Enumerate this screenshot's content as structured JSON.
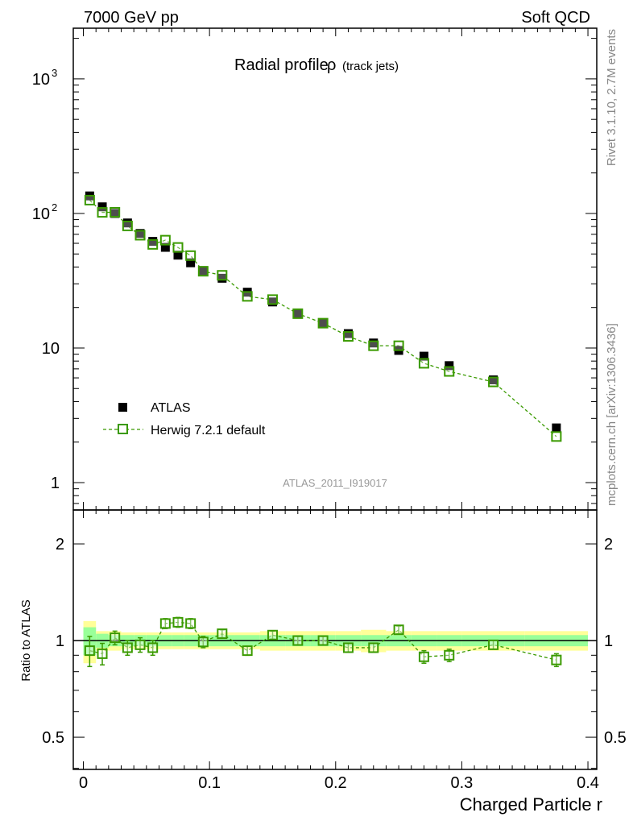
{
  "header": {
    "left": "7000 GeV pp",
    "right": "Soft QCD"
  },
  "side": {
    "rivet": "Rivet 3.1.10,  2.7M events",
    "mcplots": "mcplots.cern.ch [arXiv:1306.3436]"
  },
  "chart_data": {
    "type": "scatter",
    "title": "Radial profile",
    "title_symbol": "ρ",
    "title_suffix": "(track jets)",
    "analysis": "ATLAS_2011_I919017",
    "xlabel": "Charged Particle r",
    "ylabel_ratio": "Ratio to ATLAS",
    "xlim": [
      -0.008,
      0.407
    ],
    "ylim": [
      0.626,
      2380
    ],
    "yscale": "log",
    "ratio_ylim": [
      0.397,
      2.55
    ],
    "x_ticks": [
      "0",
      "0.1",
      "0.2",
      "0.3",
      "0.4"
    ],
    "x_tick_values": [
      0,
      0.1,
      0.2,
      0.3,
      0.4
    ],
    "y_ticks": [
      {
        "v": 1000,
        "label": "10",
        "sup": "3"
      },
      {
        "v": 100,
        "label": "10",
        "sup": "2"
      },
      {
        "v": 10,
        "label": "10",
        "sup": ""
      },
      {
        "v": 1,
        "label": "1",
        "sup": ""
      }
    ],
    "ratio_ticks": [
      {
        "v": 2,
        "label": "2"
      },
      {
        "v": 1,
        "label": "1"
      },
      {
        "v": 0.5,
        "label": "0.5"
      }
    ],
    "legend": {
      "position": "lower-left",
      "entries": [
        "ATLAS",
        "Herwig 7.2.1 default"
      ]
    },
    "x": [
      0.005,
      0.015,
      0.025,
      0.035,
      0.045,
      0.055,
      0.065,
      0.075,
      0.085,
      0.095,
      0.11,
      0.13,
      0.15,
      0.17,
      0.19,
      0.21,
      0.23,
      0.25,
      0.27,
      0.29,
      0.325,
      0.375
    ],
    "bin_edges": [
      0,
      0.01,
      0.02,
      0.03,
      0.04,
      0.05,
      0.06,
      0.07,
      0.08,
      0.09,
      0.1,
      0.12,
      0.14,
      0.16,
      0.18,
      0.2,
      0.22,
      0.24,
      0.26,
      0.28,
      0.3,
      0.35,
      0.4
    ],
    "series": [
      {
        "name": "ATLAS",
        "color": "#000000",
        "values": [
          135,
          112,
          100,
          85,
          71,
          62,
          56,
          49,
          43,
          37.6,
          33,
          26,
          22,
          18,
          15.3,
          12.8,
          10.9,
          9.6,
          8.7,
          7.4,
          5.8,
          2.55
        ],
        "band_stat": [
          0.1,
          0.05,
          0.04,
          0.04,
          0.04,
          0.04,
          0.04,
          0.04,
          0.04,
          0.04,
          0.04,
          0.04,
          0.04,
          0.04,
          0.04,
          0.04,
          0.04,
          0.04,
          0.04,
          0.04,
          0.04,
          0.04
        ],
        "band_total": [
          0.15,
          0.07,
          0.07,
          0.06,
          0.06,
          0.06,
          0.06,
          0.06,
          0.06,
          0.06,
          0.06,
          0.06,
          0.07,
          0.07,
          0.07,
          0.07,
          0.08,
          0.07,
          0.07,
          0.07,
          0.07,
          0.07
        ]
      },
      {
        "name": "Herwig 7.2.1 default",
        "color": "#3a9a00",
        "values": [
          125.6,
          101.9,
          102,
          80.8,
          68.9,
          58.9,
          63.3,
          55.9,
          48.6,
          37.2,
          34.7,
          24.2,
          22.9,
          18,
          15.3,
          12.2,
          10.4,
          10.4,
          7.7,
          6.7,
          5.6,
          2.2
        ],
        "ratio": [
          0.93,
          0.91,
          1.02,
          0.95,
          0.97,
          0.95,
          1.13,
          1.14,
          1.13,
          0.99,
          1.05,
          0.93,
          1.04,
          1.0,
          1.0,
          0.95,
          0.95,
          1.08,
          0.89,
          0.9,
          0.97,
          0.87
        ],
        "ratio_err": [
          0.1,
          0.07,
          0.05,
          0.05,
          0.05,
          0.05,
          0.04,
          0.04,
          0.04,
          0.04,
          0.03,
          0.03,
          0.03,
          0.03,
          0.03,
          0.03,
          0.03,
          0.03,
          0.04,
          0.04,
          0.03,
          0.04
        ]
      }
    ]
  }
}
